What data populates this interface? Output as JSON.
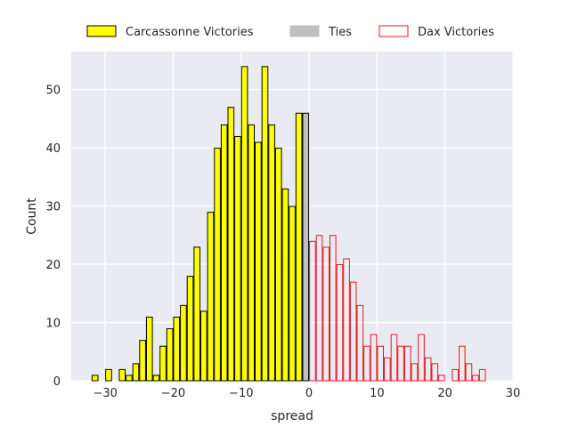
{
  "chart_data": {
    "type": "bar",
    "xlabel": "spread",
    "ylabel": "Count",
    "xlim": [
      -35,
      30
    ],
    "ylim": [
      0,
      56.5
    ],
    "xticks": [
      -30,
      -20,
      -10,
      0,
      10,
      20,
      30
    ],
    "yticks": [
      0,
      10,
      20,
      30,
      40,
      50
    ],
    "xtick_labels": [
      "−30",
      "−20",
      "−10",
      "0",
      "10",
      "20",
      "30"
    ],
    "ytick_labels": [
      "0",
      "10",
      "20",
      "30",
      "40",
      "50"
    ],
    "bin_width": 1,
    "grid": true,
    "legend_position": "top",
    "series": [
      {
        "name": "Carcassonne Victories",
        "color": "#ffff00",
        "edge": "#000000",
        "filled": true,
        "bins": [
          {
            "x": -32,
            "count": 1
          },
          {
            "x": -30,
            "count": 2
          },
          {
            "x": -28,
            "count": 2
          },
          {
            "x": -27,
            "count": 1
          },
          {
            "x": -26,
            "count": 3
          },
          {
            "x": -25,
            "count": 7
          },
          {
            "x": -24,
            "count": 11
          },
          {
            "x": -23,
            "count": 1
          },
          {
            "x": -22,
            "count": 6
          },
          {
            "x": -21,
            "count": 9
          },
          {
            "x": -20,
            "count": 11
          },
          {
            "x": -19,
            "count": 13
          },
          {
            "x": -18,
            "count": 18
          },
          {
            "x": -17,
            "count": 23
          },
          {
            "x": -16,
            "count": 12
          },
          {
            "x": -15,
            "count": 29
          },
          {
            "x": -14,
            "count": 40
          },
          {
            "x": -13,
            "count": 44
          },
          {
            "x": -12,
            "count": 47
          },
          {
            "x": -11,
            "count": 42
          },
          {
            "x": -10,
            "count": 54
          },
          {
            "x": -9,
            "count": 44
          },
          {
            "x": -8,
            "count": 41
          },
          {
            "x": -7,
            "count": 54
          },
          {
            "x": -6,
            "count": 44
          },
          {
            "x": -5,
            "count": 40
          },
          {
            "x": -4,
            "count": 33
          },
          {
            "x": -3,
            "count": 30
          },
          {
            "x": -2,
            "count": 46
          }
        ]
      },
      {
        "name": "Ties",
        "color": "#bfbfbf",
        "edge": "#000000",
        "filled": true,
        "bins": [
          {
            "x": -1,
            "count": 46
          }
        ]
      },
      {
        "name": "Dax Victories",
        "color": "#ffffff",
        "edge": "#e01b1b",
        "filled": false,
        "bins": [
          {
            "x": 0,
            "count": 24
          },
          {
            "x": 1,
            "count": 25
          },
          {
            "x": 2,
            "count": 23
          },
          {
            "x": 3,
            "count": 25
          },
          {
            "x": 4,
            "count": 20
          },
          {
            "x": 5,
            "count": 21
          },
          {
            "x": 6,
            "count": 17
          },
          {
            "x": 7,
            "count": 13
          },
          {
            "x": 8,
            "count": 6
          },
          {
            "x": 9,
            "count": 8
          },
          {
            "x": 10,
            "count": 6
          },
          {
            "x": 11,
            "count": 4
          },
          {
            "x": 12,
            "count": 8
          },
          {
            "x": 13,
            "count": 6
          },
          {
            "x": 14,
            "count": 6
          },
          {
            "x": 15,
            "count": 3
          },
          {
            "x": 16,
            "count": 8
          },
          {
            "x": 17,
            "count": 4
          },
          {
            "x": 18,
            "count": 3
          },
          {
            "x": 19,
            "count": 1
          },
          {
            "x": 21,
            "count": 2
          },
          {
            "x": 22,
            "count": 6
          },
          {
            "x": 23,
            "count": 3
          },
          {
            "x": 24,
            "count": 1
          },
          {
            "x": 25,
            "count": 2
          }
        ]
      }
    ]
  },
  "colors": {
    "plot_background": "#eaeaf2",
    "grid": "#ffffff",
    "text": "#262626"
  }
}
